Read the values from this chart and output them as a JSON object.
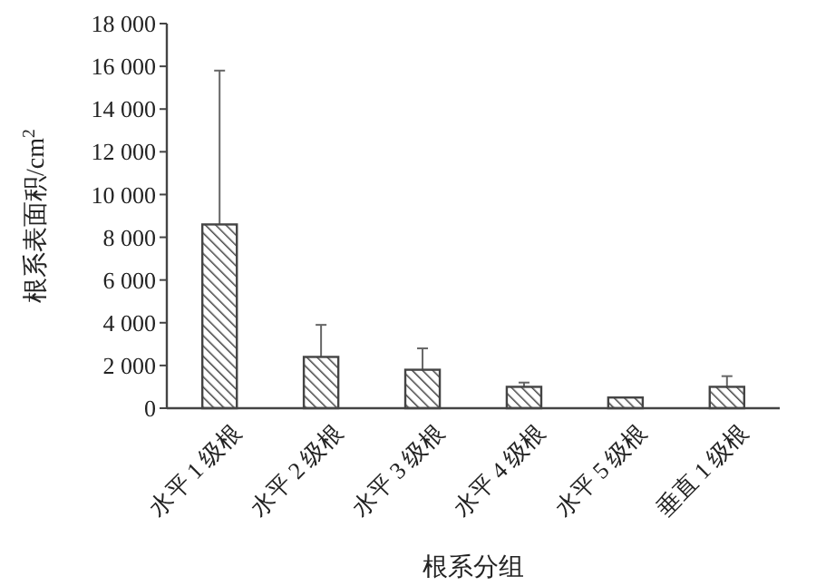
{
  "chart_data": {
    "type": "bar",
    "xlabel": "根系分组",
    "ylabel": "根系表面积/cm$^{2}$",
    "categories": [
      "水平 1 级根",
      "水平 2 级根",
      "水平 3 级根",
      "水平 4 级根",
      "水平 5 级根",
      "垂直 1 级根"
    ],
    "values": [
      8600,
      2400,
      1800,
      1000,
      500,
      1000
    ],
    "errors": [
      [
        8600,
        15800
      ],
      [
        2400,
        3900
      ],
      [
        1800,
        2800
      ],
      [
        1000,
        1200
      ],
      null,
      [
        1000,
        1500
      ]
    ],
    "color": "#444444",
    "ylim": [
      0,
      18000
    ],
    "yticks": [
      {
        "value": 0,
        "label": "0"
      },
      {
        "value": 2000,
        "label": "2 000"
      },
      {
        "value": 4000,
        "label": "4 000"
      },
      {
        "value": 6000,
        "label": "6 000"
      },
      {
        "value": 8000,
        "label": "8 000"
      },
      {
        "value": 10000,
        "label": "10 000"
      },
      {
        "value": 12000,
        "label": "12 000"
      },
      {
        "value": 14000,
        "label": "14 000"
      },
      {
        "value": 16000,
        "label": "16 000"
      },
      {
        "value": 18000,
        "label": "18 000"
      }
    ],
    "grid": false
  }
}
